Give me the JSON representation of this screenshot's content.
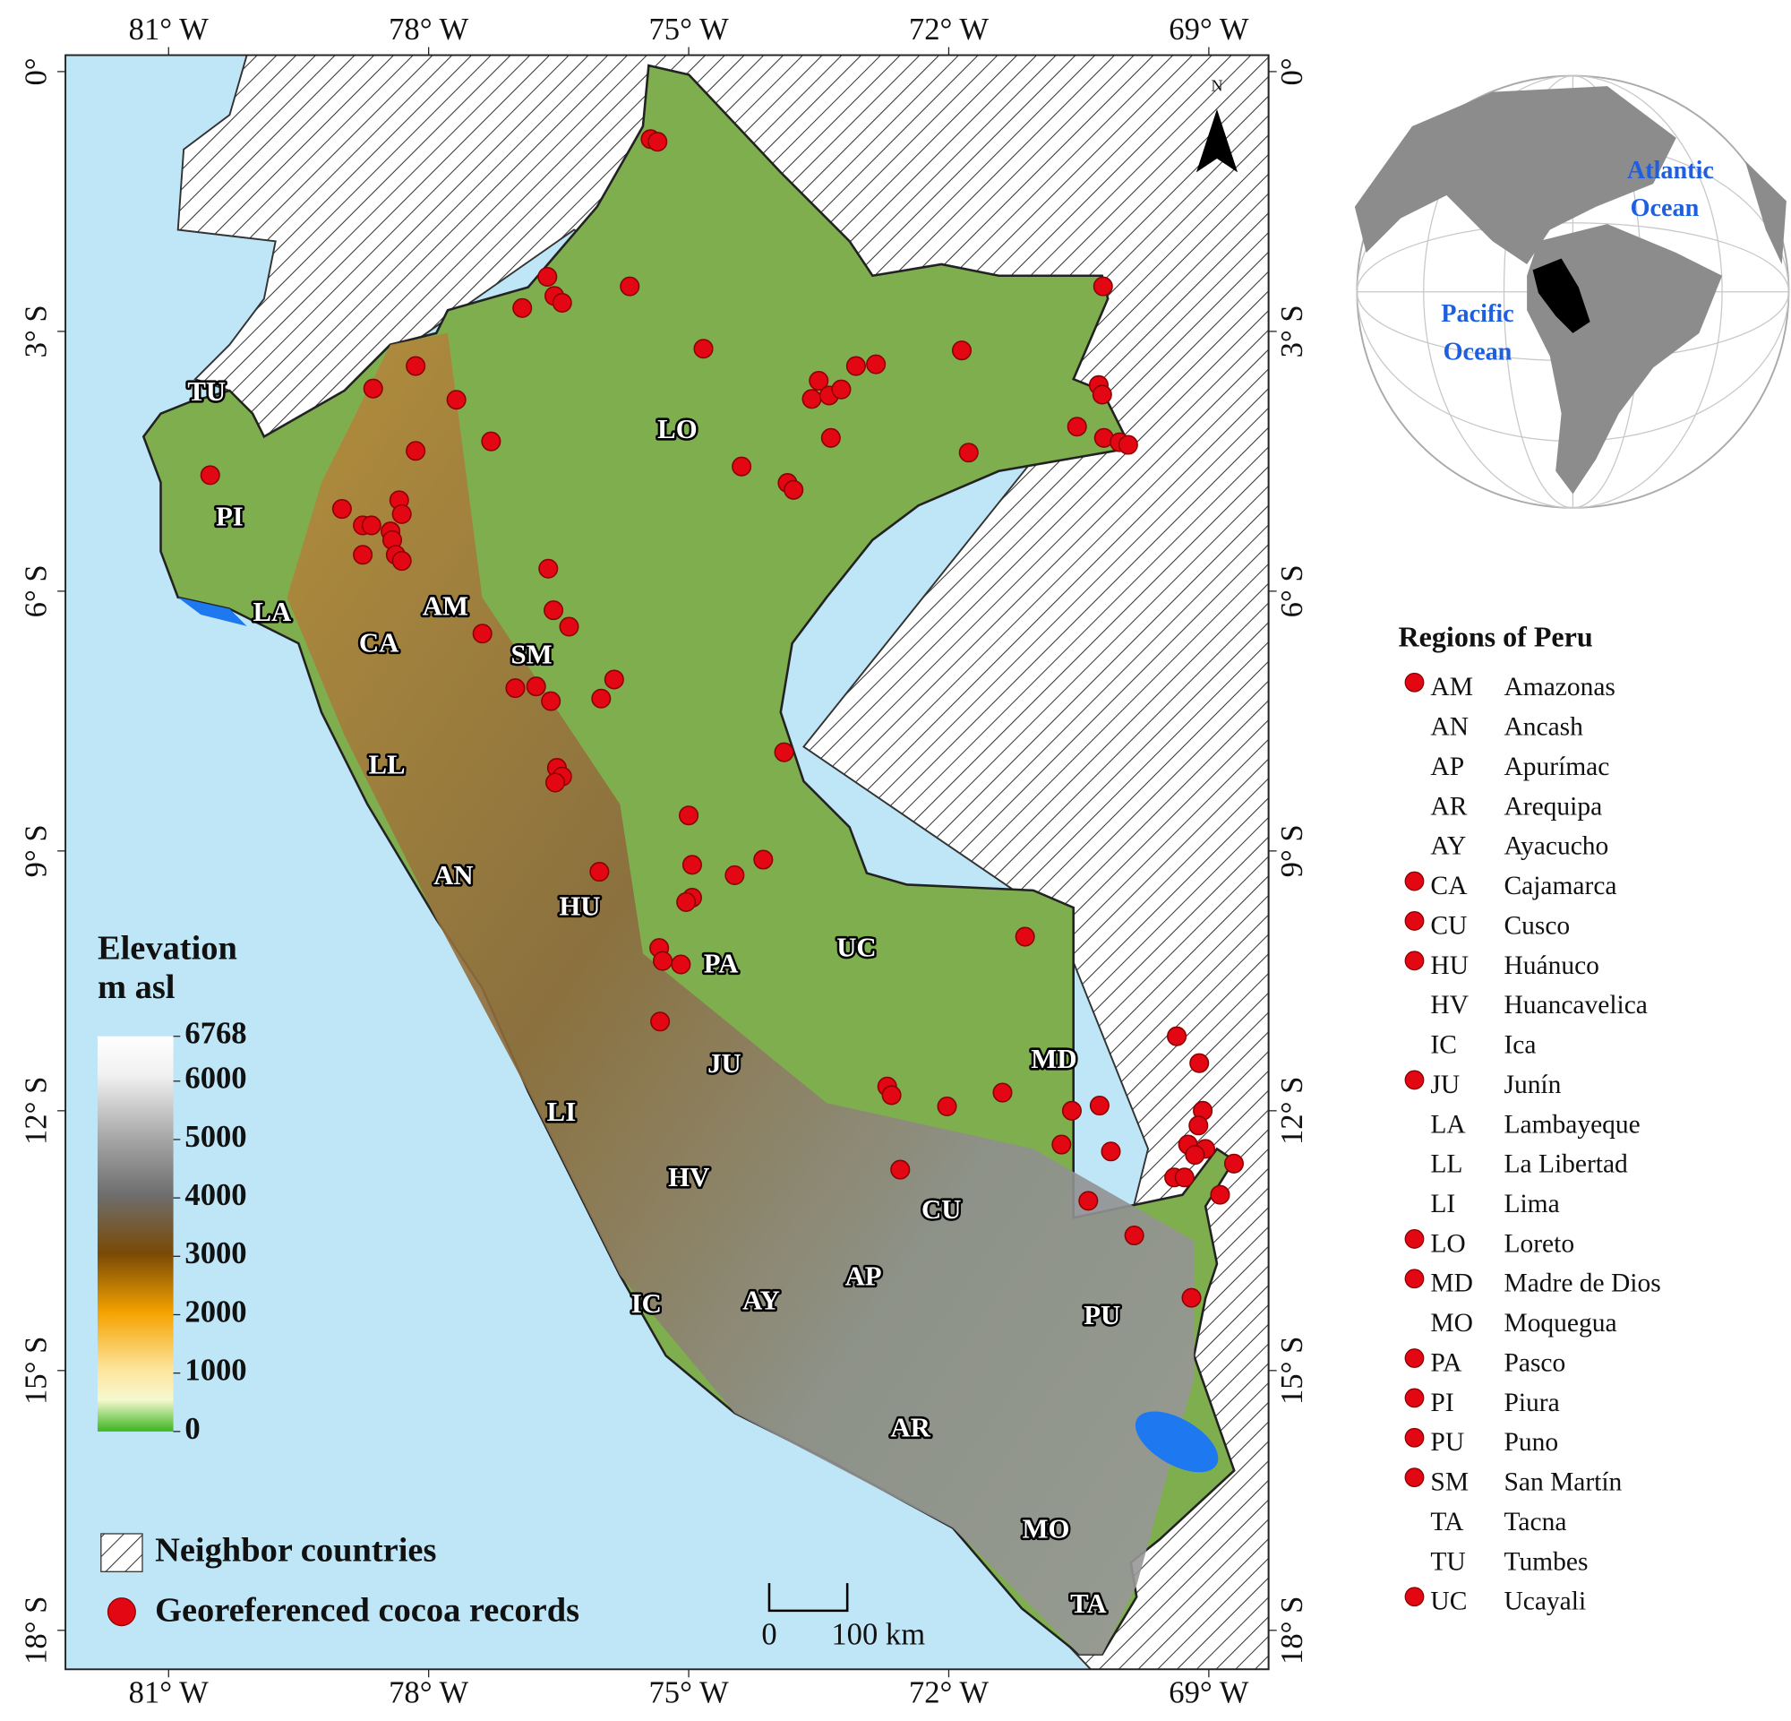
{
  "map": {
    "type": "map",
    "xlim": [
      -82.19,
      -68.31
    ],
    "ylim": [
      0.19,
      -18.45
    ],
    "xticks": [
      {
        "value": -81,
        "label": "81° W"
      },
      {
        "value": -78,
        "label": "78° W"
      },
      {
        "value": -75,
        "label": "75° W"
      },
      {
        "value": -72,
        "label": "72° W"
      },
      {
        "value": -69,
        "label": "69° W"
      }
    ],
    "yticks": [
      {
        "value": 0,
        "label": "0°"
      },
      {
        "value": -3,
        "label": "3° S"
      },
      {
        "value": -6,
        "label": "6° S"
      },
      {
        "value": -9,
        "label": "9° S"
      },
      {
        "value": -12,
        "label": "12° S"
      },
      {
        "value": -15,
        "label": "15° S"
      },
      {
        "value": -18,
        "label": "18° S"
      }
    ],
    "region_labels": [
      "TU",
      "PI",
      "LA",
      "CA",
      "AM",
      "SM",
      "LO",
      "LL",
      "AN",
      "HU",
      "PA",
      "UC",
      "JU",
      "LI",
      "MD",
      "HV",
      "CU",
      "AP",
      "AY",
      "IC",
      "PU",
      "AR",
      "MO",
      "TA"
    ],
    "points": {
      "color": "#e30613",
      "lon": [
        -75.44,
        -75.36,
        -76.63,
        -76.55,
        -76.46,
        -76.92,
        -75.68,
        -74.83,
        -78.64,
        -78.15,
        -77.68,
        -78.15,
        -77.28,
        -80.52,
        -79.0,
        -78.76,
        -78.66,
        -78.34,
        -78.31,
        -78.44,
        -78.42,
        -78.76,
        -78.38,
        -78.31,
        -76.62,
        -76.56,
        -76.38,
        -77.38,
        -77.0,
        -76.76,
        -76.59,
        -76.01,
        -75.86,
        -76.52,
        -76.46,
        -76.54,
        -73.9,
        -75.0,
        -76.03,
        -74.96,
        -74.14,
        -74.47,
        -74.96,
        -75.03,
        -75.34,
        -75.3,
        -75.09,
        -75.33,
        -74.39,
        -73.86,
        -73.79,
        -73.36,
        -73.58,
        -73.5,
        -73.38,
        -73.24,
        -73.07,
        -72.84,
        -71.85,
        -71.77,
        -70.22,
        -70.27,
        -70.23,
        -70.52,
        -70.21,
        -70.03,
        -69.93,
        -71.12,
        -69.37,
        -69.11,
        -72.71,
        -72.66,
        -72.02,
        -71.38,
        -70.26,
        -70.58,
        -69.07,
        -69.12,
        -70.7,
        -70.13,
        -69.24,
        -69.04,
        -69.16,
        -69.4,
        -69.28,
        -68.71,
        -68.87,
        -72.56,
        -70.39,
        -69.86,
        -69.2
      ],
      "lat": [
        -0.78,
        -0.81,
        -2.37,
        -2.59,
        -2.67,
        -2.73,
        -2.48,
        -3.2,
        -3.66,
        -3.4,
        -3.79,
        -4.38,
        -4.27,
        -4.66,
        -5.05,
        -5.24,
        -5.24,
        -4.95,
        -5.11,
        -5.31,
        -5.41,
        -5.58,
        -5.58,
        -5.65,
        -5.74,
        -6.22,
        -6.41,
        -6.49,
        -7.12,
        -7.1,
        -7.27,
        -7.24,
        -7.02,
        -8.04,
        -8.14,
        -8.21,
        -7.86,
        -8.59,
        -9.24,
        -9.16,
        -9.1,
        -9.28,
        -9.54,
        -9.59,
        -10.12,
        -10.27,
        -10.31,
        -10.97,
        -4.56,
        -4.75,
        -4.83,
        -4.23,
        -3.78,
        -3.57,
        -3.74,
        -3.67,
        -3.4,
        -3.38,
        -3.22,
        -4.4,
        -2.48,
        -3.62,
        -3.73,
        -4.1,
        -4.23,
        -4.28,
        -4.31,
        -9.99,
        -11.14,
        -11.45,
        -11.72,
        -11.82,
        -11.95,
        -11.79,
        -11.94,
        -12.0,
        -12.0,
        -12.17,
        -12.39,
        -12.47,
        -12.39,
        -12.44,
        -12.51,
        -12.77,
        -12.77,
        -12.61,
        -12.97,
        -12.68,
        -13.04,
        -13.44,
        -14.16
      ]
    },
    "north_label": "N",
    "scale_bar": [
      "0",
      "100 km"
    ],
    "elevation_legend": {
      "title": "Elevation",
      "unit": "m asl",
      "lim": [
        0,
        6768
      ],
      "ticks": [
        6768,
        6000,
        5000,
        4000,
        3000,
        2000,
        1000,
        0
      ]
    },
    "legend": {
      "items": [
        "Neighbor countries",
        "Georeferenced cocoa records"
      ]
    },
    "regions_legend": {
      "title": "Regions of Peru",
      "entries": [
        {
          "code": "AM",
          "name": "Amazonas",
          "records": true
        },
        {
          "code": "AN",
          "name": "Ancash",
          "records": false
        },
        {
          "code": "AP",
          "name": "Apurímac",
          "records": false
        },
        {
          "code": "AR",
          "name": "Arequipa",
          "records": false
        },
        {
          "code": "AY",
          "name": "Ayacucho",
          "records": false
        },
        {
          "code": "CA",
          "name": "Cajamarca",
          "records": true
        },
        {
          "code": "CU",
          "name": "Cusco",
          "records": true
        },
        {
          "code": "HU",
          "name": "Huánuco",
          "records": true
        },
        {
          "code": "HV",
          "name": "Huancavelica",
          "records": false
        },
        {
          "code": "IC",
          "name": "Ica",
          "records": false
        },
        {
          "code": "JU",
          "name": "Junín",
          "records": true
        },
        {
          "code": "LA",
          "name": "Lambayeque",
          "records": false
        },
        {
          "code": "LL",
          "name": "La Libertad",
          "records": false
        },
        {
          "code": "LI",
          "name": "Lima",
          "records": false
        },
        {
          "code": "LO",
          "name": "Loreto",
          "records": true
        },
        {
          "code": "MD",
          "name": "Madre de Dios",
          "records": true
        },
        {
          "code": "MO",
          "name": "Moquegua",
          "records": false
        },
        {
          "code": "PA",
          "name": "Pasco",
          "records": true
        },
        {
          "code": "PI",
          "name": "Piura",
          "records": true
        },
        {
          "code": "PU",
          "name": "Puno",
          "records": true
        },
        {
          "code": "SM",
          "name": "San Martín",
          "records": true
        },
        {
          "code": "TA",
          "name": "Tacna",
          "records": false
        },
        {
          "code": "TU",
          "name": "Tumbes",
          "records": false
        },
        {
          "code": "UC",
          "name": "Ucayali",
          "records": true
        }
      ]
    },
    "inset": {
      "labels": [
        [
          "Atlantic",
          "Ocean"
        ],
        [
          "Pacific",
          "Ocean"
        ]
      ]
    }
  }
}
